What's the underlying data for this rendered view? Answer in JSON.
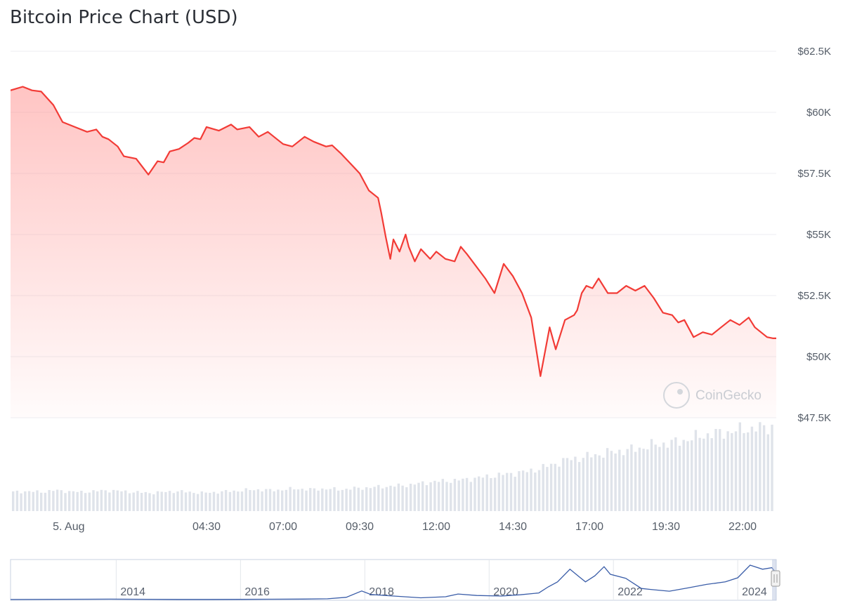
{
  "chart_data": {
    "type": "line",
    "title": "Bitcoin Price Chart (USD)",
    "currency": "USD",
    "yaxis": {
      "ticks": [
        {
          "value": 47500,
          "label": "$47.5K"
        },
        {
          "value": 50000,
          "label": "$50K"
        },
        {
          "value": 52500,
          "label": "$52.5K"
        },
        {
          "value": 55000,
          "label": "$55K"
        },
        {
          "value": 57500,
          "label": "$57.5K"
        },
        {
          "value": 60000,
          "label": "$60K"
        },
        {
          "value": 62500,
          "label": "$62.5K"
        }
      ],
      "ylim": [
        47500,
        62500
      ],
      "position": "right"
    },
    "xaxis": {
      "unit": "hours since 00:00, 5 Aug",
      "xlim": [
        -1.9,
        23.1
      ],
      "ticks": [
        {
          "value": 0,
          "label": "5. Aug"
        },
        {
          "value": 4.5,
          "label": "04:30"
        },
        {
          "value": 7,
          "label": "07:00"
        },
        {
          "value": 9.5,
          "label": "09:30"
        },
        {
          "value": 12,
          "label": "12:00"
        },
        {
          "value": 14.5,
          "label": "14:30"
        },
        {
          "value": 17,
          "label": "17:00"
        },
        {
          "value": 19.5,
          "label": "19:30"
        },
        {
          "value": 22,
          "label": "22:00"
        }
      ]
    },
    "grid": true,
    "line_color": "#f23b36",
    "fill_color": "#ff8a88",
    "volume_color": "#dfe3ea",
    "series": [
      {
        "x": [
          -1.9,
          -1.5,
          -1.2,
          -0.9,
          -0.5,
          -0.2,
          0.2,
          0.6,
          0.9,
          1.1,
          1.3,
          1.6,
          1.8,
          2.2,
          2.6,
          2.9,
          3.1,
          3.3,
          3.6,
          3.9,
          4.1,
          4.3,
          4.5,
          4.9,
          5.3,
          5.5,
          5.9,
          6.2,
          6.5,
          6.8,
          7.0,
          7.3,
          7.7,
          8.0,
          8.4,
          8.6,
          8.9,
          9.2,
          9.5,
          9.8,
          10.1,
          10.2,
          10.35,
          10.5,
          10.6,
          10.8,
          11.0,
          11.1,
          11.3,
          11.5,
          11.8,
          12.0,
          12.3,
          12.6,
          12.8,
          13.0,
          13.3,
          13.6,
          13.9,
          14.2,
          14.5,
          14.8,
          15.1,
          15.4,
          15.7,
          15.9,
          16.2,
          16.5,
          16.6,
          16.75,
          16.9,
          17.1,
          17.3,
          17.6,
          17.9,
          18.2,
          18.5,
          18.8,
          19.1,
          19.4,
          19.7,
          19.9,
          20.1,
          20.4,
          20.7,
          21.0,
          21.3,
          21.6,
          21.9,
          22.2,
          22.4,
          22.6,
          22.8,
          23.0,
          23.1
        ],
        "values": [
          60900,
          61050,
          60900,
          60850,
          60300,
          59600,
          59400,
          59200,
          59300,
          59000,
          58900,
          58600,
          58200,
          58100,
          57450,
          58000,
          57950,
          58400,
          58500,
          58750,
          58950,
          58900,
          59400,
          59250,
          59500,
          59300,
          59400,
          59000,
          59200,
          58900,
          58700,
          58600,
          59000,
          58800,
          58600,
          58650,
          58300,
          57900,
          57500,
          56800,
          56500,
          55900,
          54900,
          54000,
          54800,
          54300,
          55000,
          54500,
          53900,
          54400,
          54000,
          54300,
          54000,
          53900,
          54500,
          54200,
          53700,
          53200,
          52600,
          53800,
          53300,
          52600,
          51600,
          49200,
          51200,
          50300,
          51500,
          51700,
          51900,
          52600,
          52900,
          52800,
          53200,
          52600,
          52600,
          52900,
          52700,
          52900,
          52400,
          51800,
          51700,
          51400,
          51500,
          50800,
          51000,
          50900,
          51200,
          51500,
          51300,
          51600,
          51200,
          51000,
          50800,
          50750,
          50750
        ]
      }
    ],
    "volume": [
      0.22,
      0.23,
      0.22,
      0.24,
      0.23,
      0.22,
      0.23,
      0.24,
      0.23,
      0.22,
      0.21,
      0.22,
      0.23,
      0.22,
      0.21,
      0.22,
      0.23,
      0.24,
      0.25,
      0.24,
      0.25,
      0.26,
      0.25,
      0.26,
      0.25,
      0.26,
      0.27,
      0.28,
      0.29,
      0.3,
      0.32,
      0.34,
      0.35,
      0.36,
      0.38,
      0.4,
      0.42,
      0.44,
      0.46,
      0.5,
      0.55,
      0.6,
      0.62,
      0.65,
      0.68,
      0.7,
      0.72,
      0.76,
      0.78,
      0.8,
      0.84,
      0.88,
      0.9,
      0.92,
      0.95,
      0.96,
      0.98
    ],
    "navigator": {
      "tick_labels": [
        "2014",
        "2016",
        "2018",
        "2020",
        "2022",
        "2024"
      ],
      "series_color": "#3a5da8",
      "ylim": [
        0,
        75000
      ],
      "x": [
        2012.3,
        2013.0,
        2013.9,
        2014.5,
        2015.0,
        2015.5,
        2016.0,
        2016.5,
        2017.0,
        2017.4,
        2017.7,
        2017.95,
        2018.1,
        2018.4,
        2018.9,
        2019.3,
        2019.5,
        2019.8,
        2020.2,
        2020.5,
        2020.8,
        2020.95,
        2021.1,
        2021.3,
        2021.45,
        2021.55,
        2021.7,
        2021.85,
        2021.95,
        2022.2,
        2022.45,
        2022.6,
        2022.9,
        2023.2,
        2023.5,
        2023.8,
        2024.0,
        2024.2,
        2024.4,
        2024.55,
        2024.6
      ],
      "values": [
        100,
        500,
        800,
        500,
        300,
        250,
        400,
        650,
        1000,
        1500,
        4500,
        17000,
        10000,
        7500,
        3500,
        5500,
        11000,
        8000,
        7000,
        9500,
        13000,
        25000,
        35000,
        60000,
        45000,
        35000,
        47000,
        65000,
        50000,
        42000,
        22000,
        20000,
        16500,
        23000,
        30000,
        35000,
        43000,
        68000,
        60000,
        63000,
        55000
      ]
    },
    "watermark": "CoinGecko"
  }
}
